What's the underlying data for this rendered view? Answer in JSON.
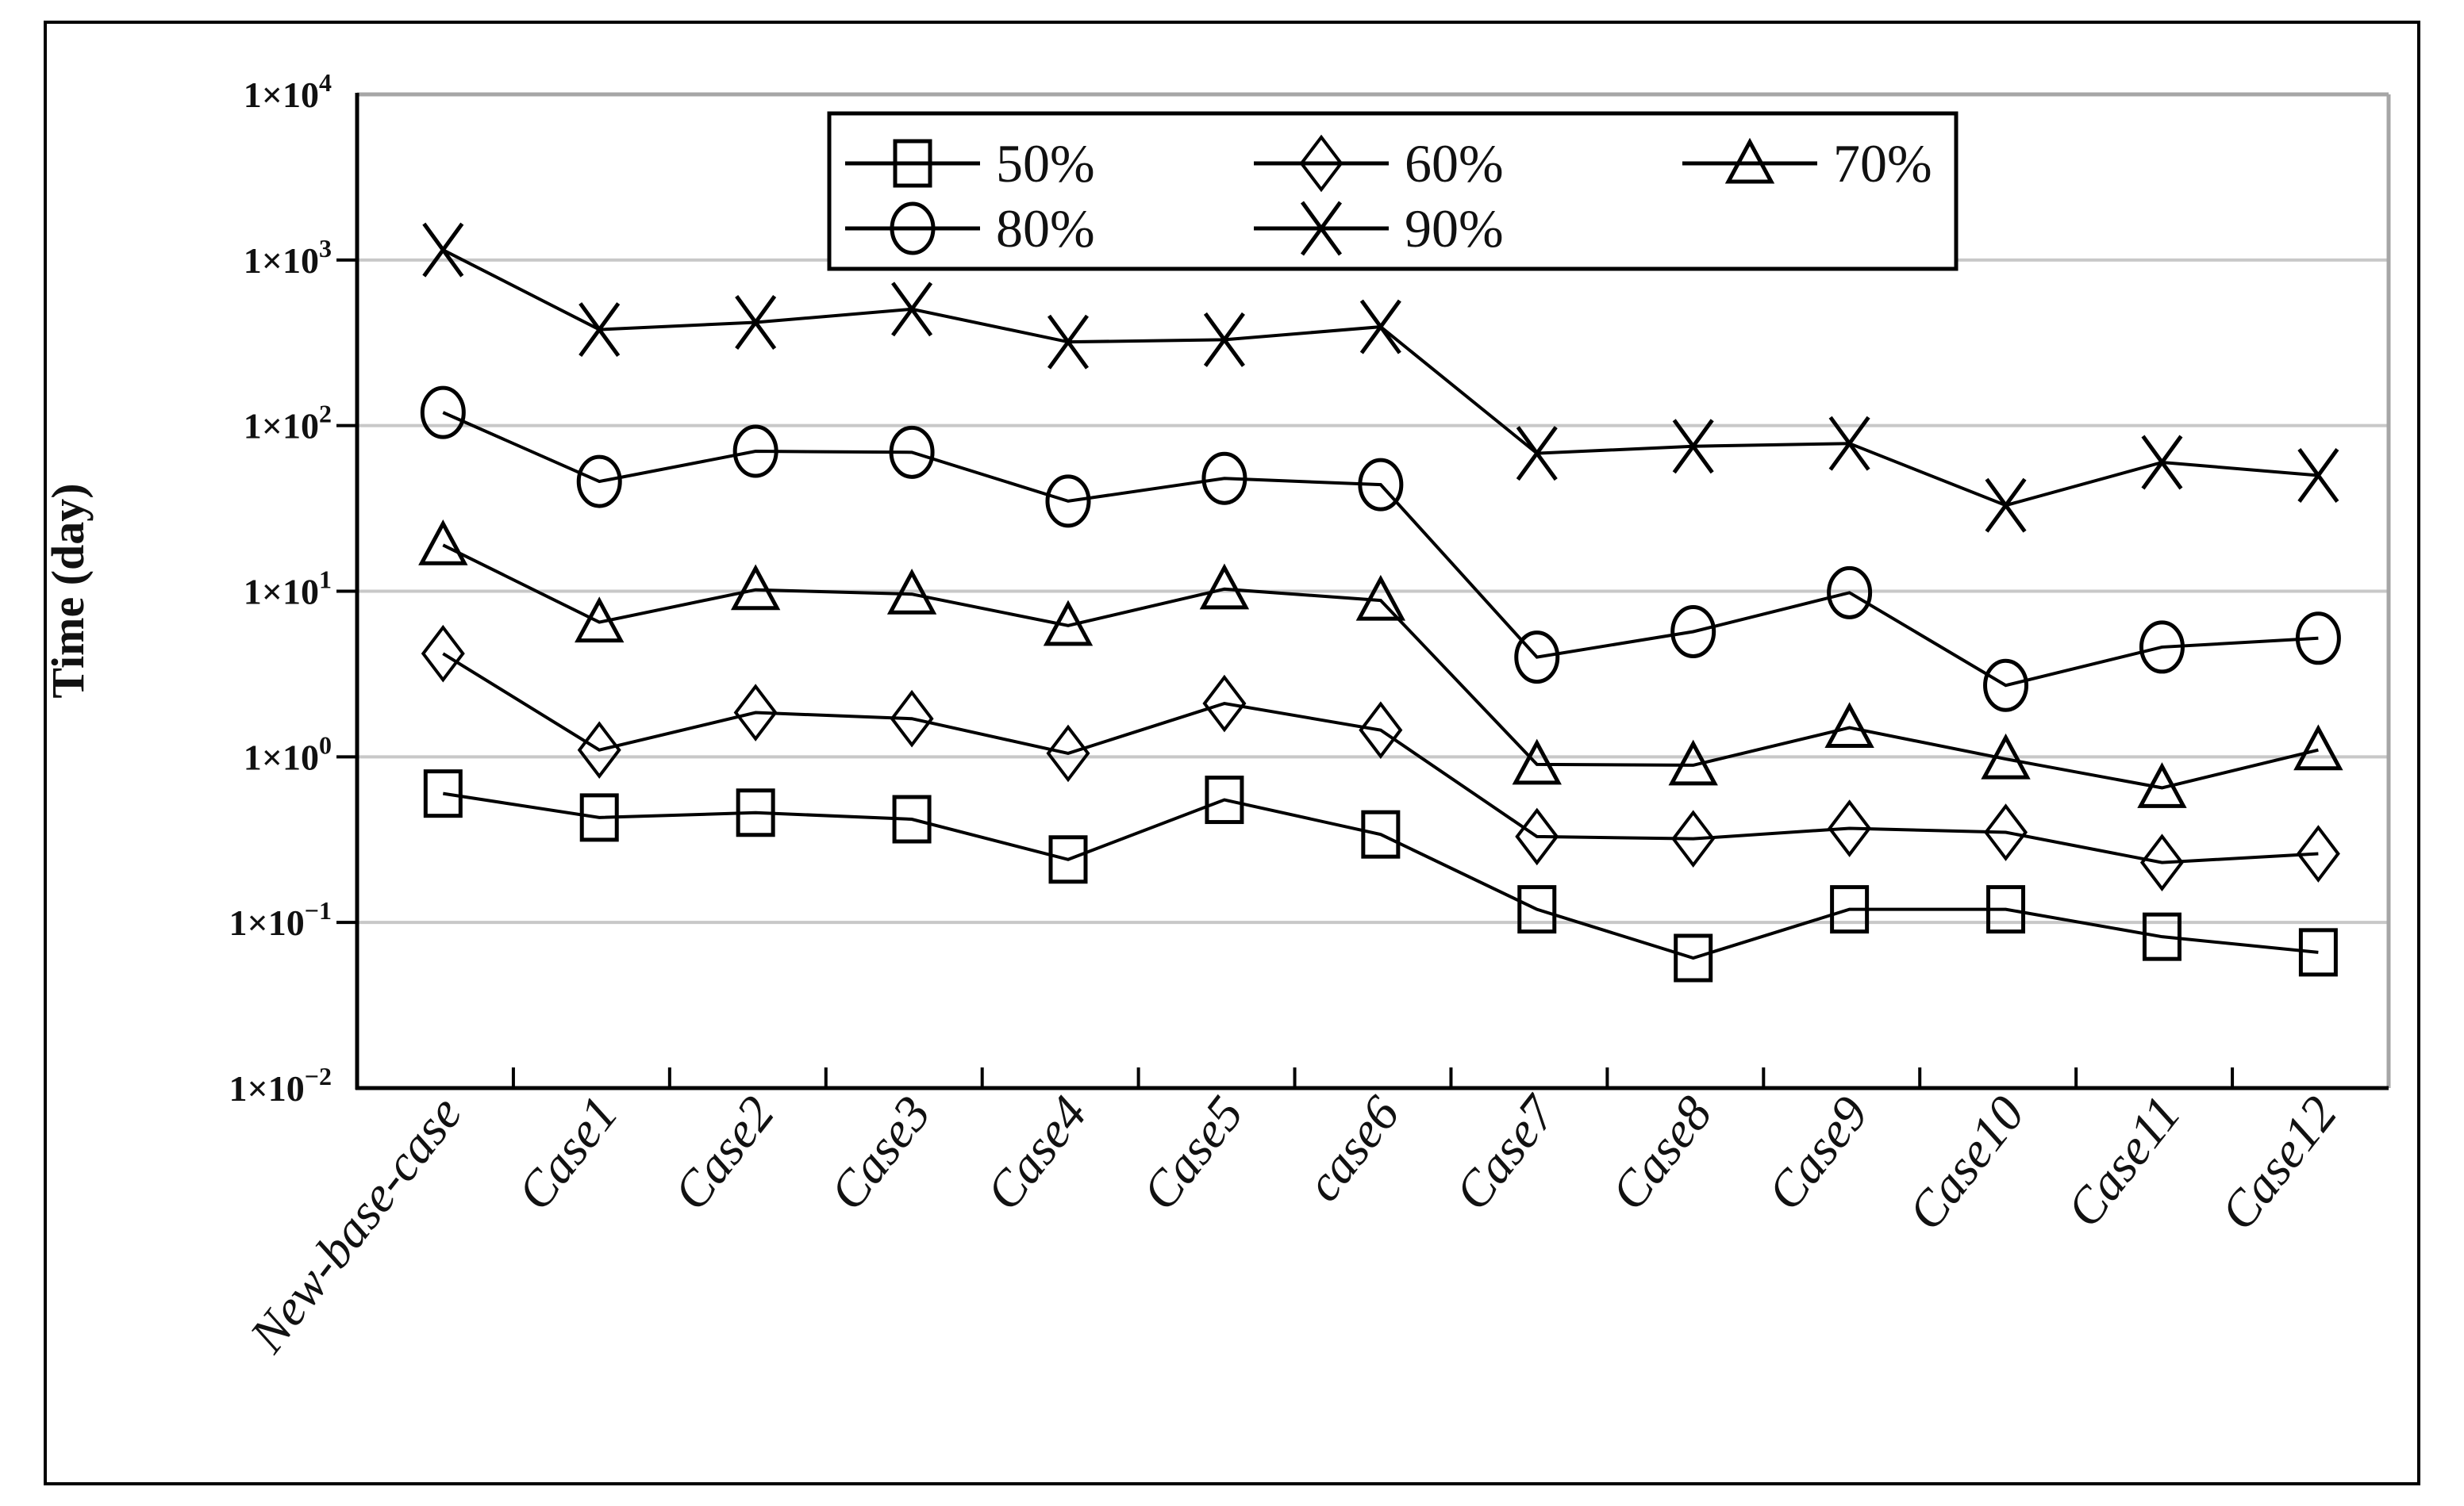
{
  "figure": {
    "background": "#ffffff",
    "outer_border_color": "#000000"
  },
  "chart_data": {
    "type": "line",
    "title": "",
    "xlabel": "",
    "ylabel": "Time (day)",
    "y_scale": "log",
    "ylim": [
      0.01,
      10000
    ],
    "grid": "horizontal-gridlines-on",
    "gridline_color": "#c8c8c8",
    "line_color": "#000000",
    "frame_top_right_color": "#a6a6a6",
    "legend_position": "top-center-inside",
    "legend_rows": [
      [
        "50%",
        "60%",
        "70%"
      ],
      [
        "80%",
        "90%"
      ]
    ],
    "categories": [
      "New-base-case",
      "Case1",
      "Case2",
      "Case3",
      "Case4",
      "Case5",
      "case6",
      "Case7",
      "Case8",
      "Case9",
      "Case10",
      "Case11",
      "Case12"
    ],
    "y_ticks": [
      {
        "base": "1×10",
        "exp": "4",
        "value": 10000
      },
      {
        "base": "1×10",
        "exp": "3",
        "value": 1000
      },
      {
        "base": "1×10",
        "exp": "2",
        "value": 100
      },
      {
        "base": "1×10",
        "exp": "1",
        "value": 10
      },
      {
        "base": "1×10",
        "exp": "0",
        "value": 1
      },
      {
        "base": "1×10",
        "exp": "−1",
        "value": 0.1
      },
      {
        "base": "1×10",
        "exp": "−2",
        "value": 0.01
      }
    ],
    "series": [
      {
        "name": "50%",
        "marker": "square",
        "values": [
          0.6,
          0.43,
          0.46,
          0.42,
          0.24,
          0.55,
          0.34,
          0.12,
          0.061,
          0.12,
          0.12,
          0.082,
          0.066
        ]
      },
      {
        "name": "60%",
        "marker": "diamond",
        "values": [
          4.2,
          1.1,
          1.85,
          1.7,
          1.05,
          2.1,
          1.45,
          0.33,
          0.32,
          0.37,
          0.35,
          0.23,
          0.26
        ]
      },
      {
        "name": "70%",
        "marker": "triangle",
        "values": [
          19,
          6.5,
          10.2,
          9.6,
          6.2,
          10.3,
          8.8,
          0.9,
          0.89,
          1.5,
          0.97,
          0.65,
          1.1
        ]
      },
      {
        "name": "80%",
        "marker": "circle",
        "values": [
          120,
          46,
          70,
          69,
          35,
          48,
          44,
          4.0,
          5.7,
          9.8,
          2.7,
          4.6,
          5.2
        ]
      },
      {
        "name": "90%",
        "marker": "x",
        "values": [
          1150,
          380,
          420,
          505,
          320,
          330,
          395,
          68,
          75,
          78,
          33,
          60,
          50
        ]
      }
    ]
  }
}
